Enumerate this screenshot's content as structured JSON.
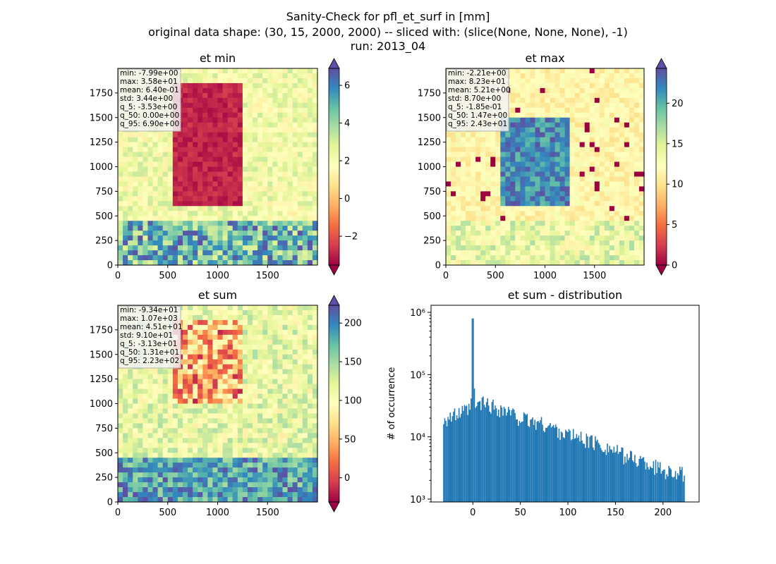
{
  "figure": {
    "title_lines": [
      "Sanity-Check for pfl_et_surf in [mm]",
      "original data shape: (30, 15, 2000, 2000) -- sliced with: (slice(None, None, None), -1)",
      "run: 2013_04"
    ]
  },
  "chart_data": [
    {
      "type": "heatmap",
      "title": "et min",
      "colormap": "Spectral",
      "colorbar": {
        "range": [
          -3.53,
          6.9
        ],
        "ticks": [
          -2,
          0,
          2,
          4,
          6
        ],
        "extend": "both"
      },
      "x_ticks": [
        0,
        500,
        1000,
        1500
      ],
      "y_ticks": [
        0,
        250,
        500,
        750,
        1000,
        1250,
        1500,
        1750
      ],
      "xlim": [
        0,
        2000
      ],
      "ylim": [
        0,
        2000
      ],
      "stats": [
        "min: -7.99e+00",
        "max: 3.58e+01",
        "mean: 6.40e-01",
        "std: 3.44e+00",
        "q_5: -3.53e+00",
        "q_50: 0.00e+00",
        "q_95: 6.90e+00"
      ]
    },
    {
      "type": "heatmap",
      "title": "et max",
      "colormap": "Spectral",
      "colorbar": {
        "range": [
          0,
          24.3
        ],
        "ticks": [
          0,
          5,
          10,
          15,
          20
        ],
        "extend": "both"
      },
      "x_ticks": [
        0,
        500,
        1000,
        1500
      ],
      "y_ticks": [
        0,
        250,
        500,
        750,
        1000,
        1250,
        1500,
        1750
      ],
      "xlim": [
        0,
        2000
      ],
      "ylim": [
        0,
        2000
      ],
      "stats": [
        "min: -2.21e+00",
        "max: 8.23e+01",
        "mean: 5.21e+00",
        "std: 8.70e+00",
        "q_5: -1.85e-01",
        "q_50: 1.47e+00",
        "q_95: 2.43e+01"
      ]
    },
    {
      "type": "heatmap",
      "title": "et sum",
      "colormap": "Spectral",
      "colorbar": {
        "range": [
          -31.3,
          223
        ],
        "ticks": [
          0,
          50,
          100,
          150,
          200
        ],
        "extend": "both"
      },
      "x_ticks": [
        0,
        500,
        1000,
        1500
      ],
      "y_ticks": [
        0,
        250,
        500,
        750,
        1000,
        1250,
        1500,
        1750
      ],
      "xlim": [
        0,
        2000
      ],
      "ylim": [
        0,
        2000
      ],
      "stats": [
        "min: -9.34e+01",
        "max: 1.07e+03",
        "mean: 4.51e+01",
        "std: 9.10e+01",
        "q_5: -3.13e+01",
        "q_50: 1.31e+01",
        "q_95: 2.23e+02"
      ]
    },
    {
      "type": "bar",
      "title": "et sum - distribution",
      "ylabel": "# of occurrence",
      "xlabel": "",
      "yscale": "log",
      "xlim": [
        -44,
        238
      ],
      "ylim": [
        900,
        1300000
      ],
      "x_ticks": [
        0,
        50,
        100,
        150,
        200
      ],
      "y_ticks": [
        {
          "value": 1000,
          "label": "10³"
        },
        {
          "value": 10000,
          "label": "10⁴"
        },
        {
          "value": 100000,
          "label": "10⁵"
        },
        {
          "value": 1000000,
          "label": "10⁶"
        }
      ],
      "color": "#1f77b4",
      "bin_range": [
        -31.3,
        223
      ],
      "bin_count": 220,
      "profile_x": [
        -31.3,
        -20,
        -10,
        -2,
        0,
        2,
        10,
        20,
        30,
        40,
        50,
        60,
        70,
        80,
        90,
        100,
        110,
        120,
        130,
        140,
        150,
        160,
        170,
        180,
        190,
        200,
        210,
        223
      ],
      "profile_counts": [
        20000,
        22000,
        25000,
        28000,
        800000,
        30000,
        36000,
        32000,
        28000,
        24000,
        20000,
        18000,
        17000,
        15000,
        13000,
        11000,
        10000,
        9000,
        8000,
        7000,
        6000,
        5000,
        4500,
        4000,
        3500,
        3000,
        2800,
        2500
      ]
    }
  ]
}
